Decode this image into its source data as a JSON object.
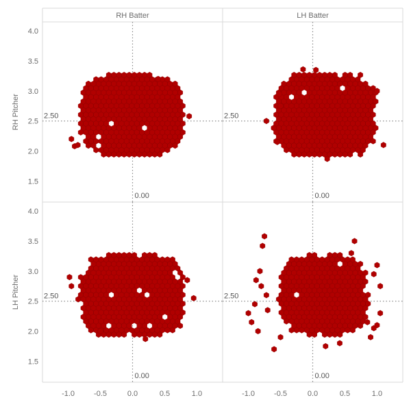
{
  "chart_data": {
    "type": "heatmap",
    "subtype": "hexbin-small-multiples",
    "columns": [
      "RH Batter",
      "LH Batter"
    ],
    "rows": [
      "RH Pitcher",
      "LH Pitcher"
    ],
    "xticks": [
      "-1.0",
      "-0.5",
      "0.0",
      "0.5",
      "1.0"
    ],
    "yticks": [
      "4.0",
      "3.5",
      "3.0",
      "2.5",
      "2.0",
      "1.5"
    ],
    "xlim": [
      -1.4,
      1.4
    ],
    "ylim": [
      1.15,
      4.15
    ],
    "reference_lines": {
      "x_value": 0.0,
      "x_label": "0.00",
      "y_value": 2.5,
      "y_label": "2.50"
    },
    "color": "#b00000",
    "panels": [
      {
        "column": "RH Batter",
        "row": "RH Pitcher",
        "x_range": [
          -0.85,
          0.85
        ],
        "y_range": [
          1.87,
          3.33
        ],
        "blobs": [
          {
            "cx": 0.0,
            "cy": 2.6,
            "rx": 0.85,
            "ry": 0.73
          }
        ],
        "stray_points": [
          [
            -0.95,
            2.2
          ],
          [
            -0.9,
            2.08
          ],
          [
            0.88,
            2.58
          ],
          [
            -0.85,
            2.1
          ],
          [
            0.4,
            3.2
          ]
        ]
      },
      {
        "column": "LH Batter",
        "row": "RH Pitcher",
        "x_range": [
          -0.62,
          1.05
        ],
        "y_range": [
          1.85,
          3.36
        ],
        "blobs": [
          {
            "cx": 0.2,
            "cy": 2.6,
            "rx": 0.83,
            "ry": 0.74
          }
        ],
        "stray_points": [
          [
            -0.72,
            2.5
          ],
          [
            -0.55,
            2.15
          ],
          [
            -0.5,
            2.75
          ],
          [
            -0.52,
            2.95
          ],
          [
            1.1,
            2.1
          ],
          [
            0.05,
            3.35
          ],
          [
            -0.15,
            3.36
          ],
          [
            1.0,
            3.0
          ]
        ]
      },
      {
        "column": "RH Batter",
        "row": "LH Pitcher",
        "x_range": [
          -0.95,
          0.9
        ],
        "y_range": [
          1.87,
          3.36
        ],
        "blobs": [
          {
            "cx": 0.0,
            "cy": 2.6,
            "rx": 0.86,
            "ry": 0.73
          }
        ],
        "stray_points": [
          [
            -0.98,
            2.9
          ],
          [
            -0.95,
            2.75
          ],
          [
            0.95,
            2.55
          ],
          [
            0.85,
            2.85
          ],
          [
            0.2,
            1.87
          ],
          [
            -0.5,
            2.0
          ]
        ]
      },
      {
        "column": "LH Batter",
        "row": "LH Pitcher",
        "x_range": [
          -0.9,
          1.1
        ],
        "y_range": [
          1.7,
          3.58
        ],
        "blobs": [
          {
            "cx": 0.18,
            "cy": 2.6,
            "rx": 0.72,
            "ry": 0.7
          }
        ],
        "stray_points": [
          [
            -0.75,
            3.58
          ],
          [
            -0.78,
            3.42
          ],
          [
            -0.95,
            2.15
          ],
          [
            -1.0,
            2.3
          ],
          [
            -0.85,
            2.0
          ],
          [
            -0.8,
            2.75
          ],
          [
            -0.88,
            2.85
          ],
          [
            -0.9,
            2.45
          ],
          [
            -0.82,
            3.0
          ],
          [
            -0.6,
            1.7
          ],
          [
            -0.5,
            1.9
          ],
          [
            0.42,
            1.8
          ],
          [
            0.2,
            1.75
          ],
          [
            0.65,
            3.5
          ],
          [
            0.6,
            3.3
          ],
          [
            1.0,
            2.1
          ],
          [
            1.05,
            2.3
          ],
          [
            0.95,
            2.05
          ],
          [
            1.05,
            2.75
          ],
          [
            0.95,
            2.95
          ],
          [
            1.0,
            3.1
          ],
          [
            0.85,
            2.15
          ],
          [
            0.9,
            1.9
          ],
          [
            -0.7,
            2.35
          ],
          [
            -0.72,
            2.6
          ]
        ]
      }
    ]
  }
}
